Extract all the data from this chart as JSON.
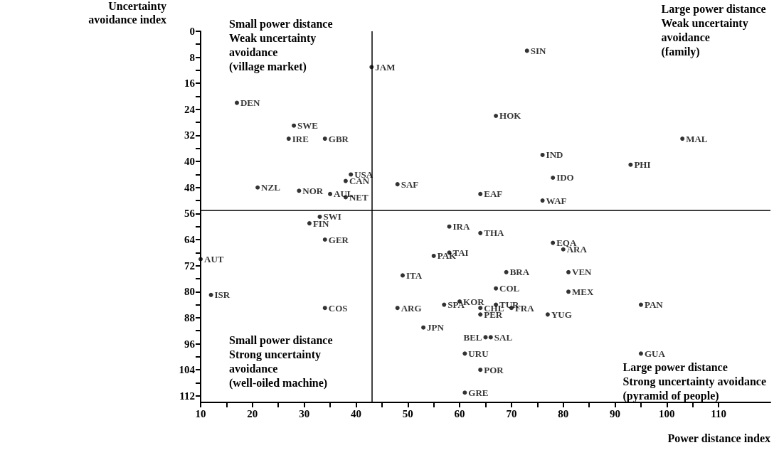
{
  "chart_data": {
    "type": "scatter",
    "xlabel": "Power distance index",
    "ylabel": "Uncertainty\navoidance index",
    "xlim": [
      10,
      120
    ],
    "ylim": [
      114,
      0
    ],
    "xticks": [
      10,
      {
        "value": 15,
        "label": null
      },
      20,
      {
        "value": 25,
        "label": null
      },
      30,
      {
        "value": 35,
        "label": null
      },
      40,
      {
        "value": 45,
        "label": null
      },
      50,
      {
        "value": 55,
        "label": null
      },
      60,
      {
        "value": 65,
        "label": null
      },
      70,
      {
        "value": 75,
        "label": null
      },
      80,
      {
        "value": 85,
        "label": null
      },
      90,
      {
        "value": 95,
        "label": null
      },
      100,
      {
        "value": 105,
        "label": null
      },
      110
    ],
    "yticks": [
      0,
      {
        "value": 4,
        "label": null
      },
      8,
      {
        "value": 12,
        "label": null
      },
      16,
      {
        "value": 20,
        "label": null
      },
      24,
      {
        "value": 28,
        "label": null
      },
      32,
      {
        "value": 36,
        "label": null
      },
      40,
      {
        "value": 44,
        "label": null
      },
      48,
      {
        "value": 52,
        "label": null
      },
      56,
      {
        "value": 60,
        "label": null
      },
      64,
      {
        "value": 68,
        "label": null
      },
      72,
      {
        "value": 76,
        "label": null
      },
      80,
      {
        "value": 84,
        "label": null
      },
      88,
      {
        "value": 92,
        "label": null
      },
      96,
      {
        "value": 100,
        "label": null
      },
      104,
      {
        "value": 108,
        "label": null
      },
      112
    ],
    "grid": false,
    "legend": false,
    "marker": "circle",
    "ref_lines": [
      {
        "axis": "x",
        "value": 43,
        "color": "#000000"
      },
      {
        "axis": "y",
        "value": 55,
        "color": "#000000"
      }
    ],
    "annotations": [
      "Small power distance\nWeak uncertainty\navoidance\n(village market)",
      "Large power distance\nWeak uncertainty\navoidance\n(family)",
      "Small power distance\nStrong uncertainty\navoidance\n(well-oiled machine)",
      "Large power distance\nStrong uncertainty avoidance\n(pyramid of people)"
    ],
    "series": [
      {
        "name": "DEN",
        "color": "#000000",
        "x": [
          17
        ],
        "values": [
          22
        ]
      },
      {
        "name": "SWE",
        "color": "#000000",
        "x": [
          28
        ],
        "values": [
          29
        ]
      },
      {
        "name": "IRE",
        "color": "#000000",
        "x": [
          27
        ],
        "values": [
          33
        ]
      },
      {
        "name": "GBR",
        "color": "#000000",
        "x": [
          34
        ],
        "values": [
          33
        ]
      },
      {
        "name": "USA",
        "color": "#000000",
        "x": [
          39
        ],
        "values": [
          44
        ]
      },
      {
        "name": "CAN",
        "color": "#000000",
        "x": [
          38
        ],
        "values": [
          46
        ]
      },
      {
        "name": "NZL",
        "color": "#000000",
        "x": [
          21
        ],
        "values": [
          48
        ]
      },
      {
        "name": "NOR",
        "color": "#000000",
        "x": [
          29
        ],
        "values": [
          49
        ]
      },
      {
        "name": "AUL",
        "color": "#000000",
        "x": [
          35
        ],
        "values": [
          50
        ]
      },
      {
        "name": "NET",
        "color": "#000000",
        "x": [
          38
        ],
        "values": [
          51
        ]
      },
      {
        "name": "JAM",
        "color": "#000000",
        "x": [
          43
        ],
        "values": [
          11
        ]
      },
      {
        "name": "SAF",
        "color": "#000000",
        "x": [
          48
        ],
        "values": [
          47
        ]
      },
      {
        "name": "SIN",
        "color": "#000000",
        "x": [
          73
        ],
        "values": [
          6
        ]
      },
      {
        "name": "HOK",
        "color": "#000000",
        "x": [
          67
        ],
        "values": [
          26
        ]
      },
      {
        "name": "IND",
        "color": "#000000",
        "x": [
          76
        ],
        "values": [
          38
        ]
      },
      {
        "name": "IDO",
        "color": "#000000",
        "x": [
          78
        ],
        "values": [
          45
        ]
      },
      {
        "name": "PHI",
        "color": "#000000",
        "x": [
          93
        ],
        "values": [
          41
        ]
      },
      {
        "name": "MAL",
        "color": "#000000",
        "x": [
          103
        ],
        "values": [
          33
        ]
      },
      {
        "name": "EAF",
        "color": "#000000",
        "x": [
          64
        ],
        "values": [
          50
        ]
      },
      {
        "name": "WAF",
        "color": "#000000",
        "x": [
          76
        ],
        "values": [
          52
        ]
      },
      {
        "name": "SWI",
        "color": "#000000",
        "x": [
          33
        ],
        "values": [
          57
        ]
      },
      {
        "name": "FIN",
        "color": "#000000",
        "x": [
          31
        ],
        "values": [
          59
        ]
      },
      {
        "name": "GER",
        "color": "#000000",
        "x": [
          34
        ],
        "values": [
          64
        ]
      },
      {
        "name": "AUT",
        "color": "#000000",
        "x": [
          10
        ],
        "values": [
          70
        ]
      },
      {
        "name": "ISR",
        "color": "#000000",
        "x": [
          12
        ],
        "values": [
          81
        ]
      },
      {
        "name": "COS",
        "color": "#000000",
        "x": [
          34
        ],
        "values": [
          85
        ]
      },
      {
        "name": "IRA",
        "color": "#000000",
        "x": [
          58
        ],
        "values": [
          60
        ]
      },
      {
        "name": "THA",
        "color": "#000000",
        "x": [
          64
        ],
        "values": [
          62
        ]
      },
      {
        "name": "PAK",
        "color": "#000000",
        "x": [
          55
        ],
        "values": [
          69
        ]
      },
      {
        "name": "TAI",
        "color": "#000000",
        "x": [
          58
        ],
        "values": [
          68
        ]
      },
      {
        "name": "EQA",
        "color": "#000000",
        "x": [
          78
        ],
        "values": [
          65
        ]
      },
      {
        "name": "ARA",
        "color": "#000000",
        "x": [
          80
        ],
        "values": [
          67
        ]
      },
      {
        "name": "ITA",
        "color": "#000000",
        "x": [
          49
        ],
        "values": [
          75
        ]
      },
      {
        "name": "BRA",
        "color": "#000000",
        "x": [
          69
        ],
        "values": [
          74
        ]
      },
      {
        "name": "VEN",
        "color": "#000000",
        "x": [
          81
        ],
        "values": [
          74
        ]
      },
      {
        "name": "COL",
        "color": "#000000",
        "x": [
          67
        ],
        "values": [
          79
        ]
      },
      {
        "name": "MEX",
        "color": "#000000",
        "x": [
          81
        ],
        "values": [
          80
        ]
      },
      {
        "name": "ARG",
        "color": "#000000",
        "x": [
          48
        ],
        "values": [
          85
        ]
      },
      {
        "name": "SPA",
        "color": "#000000",
        "x": [
          57
        ],
        "values": [
          84
        ]
      },
      {
        "name": "KOR",
        "color": "#000000",
        "x": [
          60
        ],
        "values": [
          83
        ]
      },
      {
        "name": "CHL",
        "color": "#000000",
        "x": [
          64
        ],
        "values": [
          85
        ]
      },
      {
        "name": "PER",
        "color": "#000000",
        "x": [
          64
        ],
        "values": [
          87
        ]
      },
      {
        "name": "TUR",
        "color": "#000000",
        "x": [
          67
        ],
        "values": [
          84
        ]
      },
      {
        "name": "FRA",
        "color": "#000000",
        "x": [
          70
        ],
        "values": [
          85
        ]
      },
      {
        "name": "YUG",
        "color": "#000000",
        "x": [
          77
        ],
        "values": [
          87
        ]
      },
      {
        "name": "PAN",
        "color": "#000000",
        "x": [
          95
        ],
        "values": [
          84
        ]
      },
      {
        "name": "JPN",
        "color": "#000000",
        "x": [
          53
        ],
        "values": [
          91
        ]
      },
      {
        "name": "BEL",
        "color": "#000000",
        "x": [
          65
        ],
        "values": [
          94
        ]
      },
      {
        "name": "SAL",
        "color": "#000000",
        "x": [
          66
        ],
        "values": [
          94
        ]
      },
      {
        "name": "URU",
        "color": "#000000",
        "x": [
          61
        ],
        "values": [
          99
        ]
      },
      {
        "name": "POR",
        "color": "#000000",
        "x": [
          64
        ],
        "values": [
          104
        ]
      },
      {
        "name": "GRE",
        "color": "#000000",
        "x": [
          61
        ],
        "values": [
          111
        ]
      },
      {
        "name": "GUA",
        "color": "#000000",
        "x": [
          95
        ],
        "values": [
          99
        ]
      }
    ]
  }
}
